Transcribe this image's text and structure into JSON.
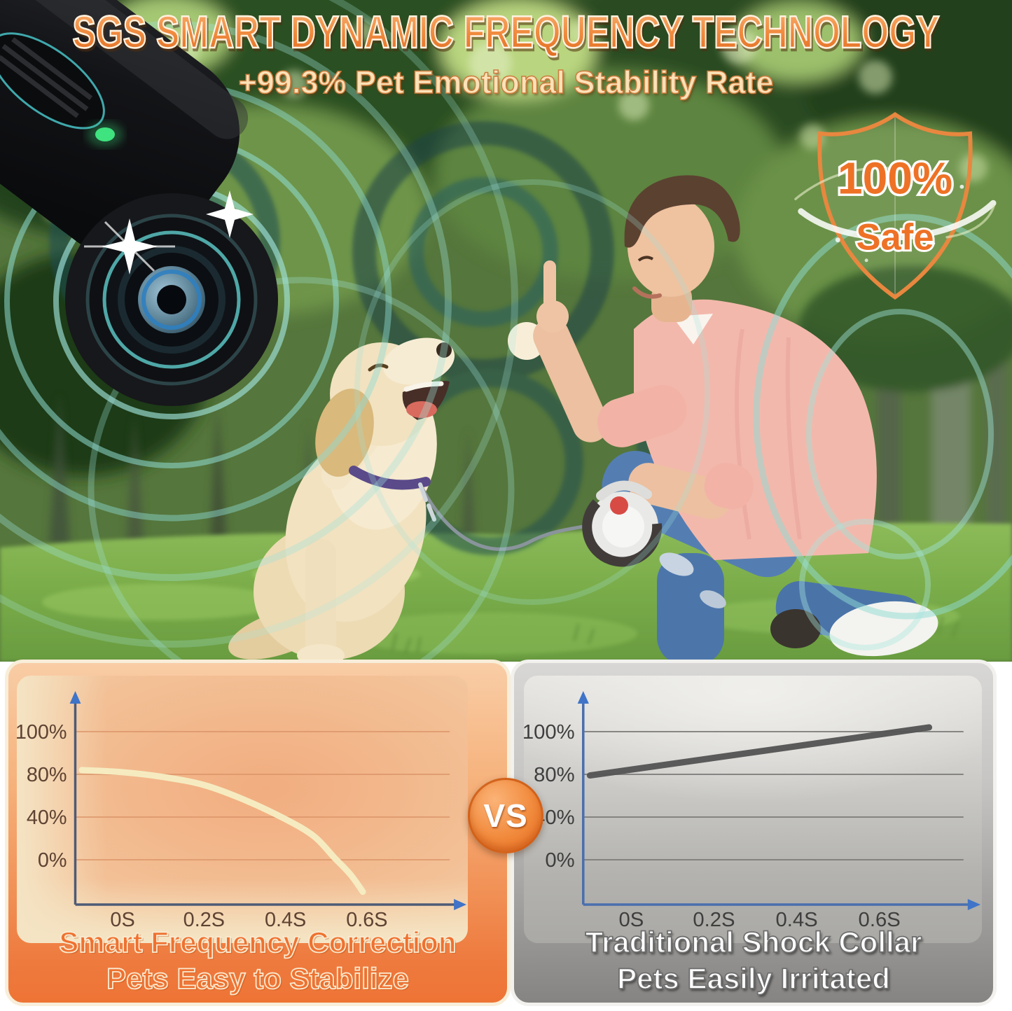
{
  "header": {
    "title": "SGS SMART DYNAMIC FREQUENCY TECHNOLOGY",
    "subtitle": "+99.3% Pet Emotional Stability Rate"
  },
  "safe_badge": {
    "value": "100%",
    "label": "Safe"
  },
  "vs_badge": "VS",
  "chart_data": [
    {
      "id": "smart-frequency-correction",
      "type": "line",
      "theme": "orange",
      "caption_line1": "Smart Frequency Correction",
      "caption_line2": "Pets Easy to Stabilize",
      "x_tick_labels": [
        "0S",
        "0.2S",
        "0.4S",
        "0.6S"
      ],
      "x_tick_values": [
        0,
        0.2,
        0.4,
        0.6
      ],
      "y_tick_labels": [
        "100%",
        "80%",
        "40%",
        "0%"
      ],
      "y_tick_values": [
        100,
        80,
        40,
        0
      ],
      "line_color": "#f6ecc2",
      "grid": true,
      "layout_note": "four gridlines equally spaced; curve falls below 0% axis at right end",
      "series": [
        {
          "points": [
            [
              -0.1,
              82
            ],
            [
              0.0,
              81
            ],
            [
              0.1,
              77.5
            ],
            [
              0.2,
              70
            ],
            [
              0.3,
              56
            ],
            [
              0.4,
              38
            ],
            [
              0.47,
              22
            ],
            [
              0.52,
              2
            ],
            [
              0.56,
              -14
            ],
            [
              0.59,
              -30
            ]
          ]
        }
      ]
    },
    {
      "id": "traditional-shock-collar",
      "type": "line",
      "theme": "gray",
      "caption_line1": "Traditional Shock Collar",
      "caption_line2": "Pets Easily Irritated",
      "x_tick_labels": [
        "0S",
        "0.2S",
        "0.4S",
        "0.6S"
      ],
      "x_tick_values": [
        0,
        0.2,
        0.4,
        0.6
      ],
      "y_tick_labels": [
        "100%",
        "80%",
        "40%",
        "0%"
      ],
      "y_tick_values": [
        100,
        80,
        40,
        0
      ],
      "line_color": "#565656",
      "grid": true,
      "layout_note": "straight rising line from ~79% to ~102%",
      "series": [
        {
          "points": [
            [
              -0.1,
              79
            ],
            [
              0.72,
              102
            ]
          ]
        }
      ]
    }
  ],
  "colors": {
    "accent_orange": "#ee7535",
    "headline_orange": "#ef8a3e",
    "cream": "#f6ead2",
    "panel_gray": "#8f8e8c",
    "wave_teal": "#8fdcd4",
    "led_green": "#3fe37f",
    "axis_blue": "#3f74c8",
    "curve_cream": "#f6ecc2",
    "line_gray": "#565656"
  }
}
